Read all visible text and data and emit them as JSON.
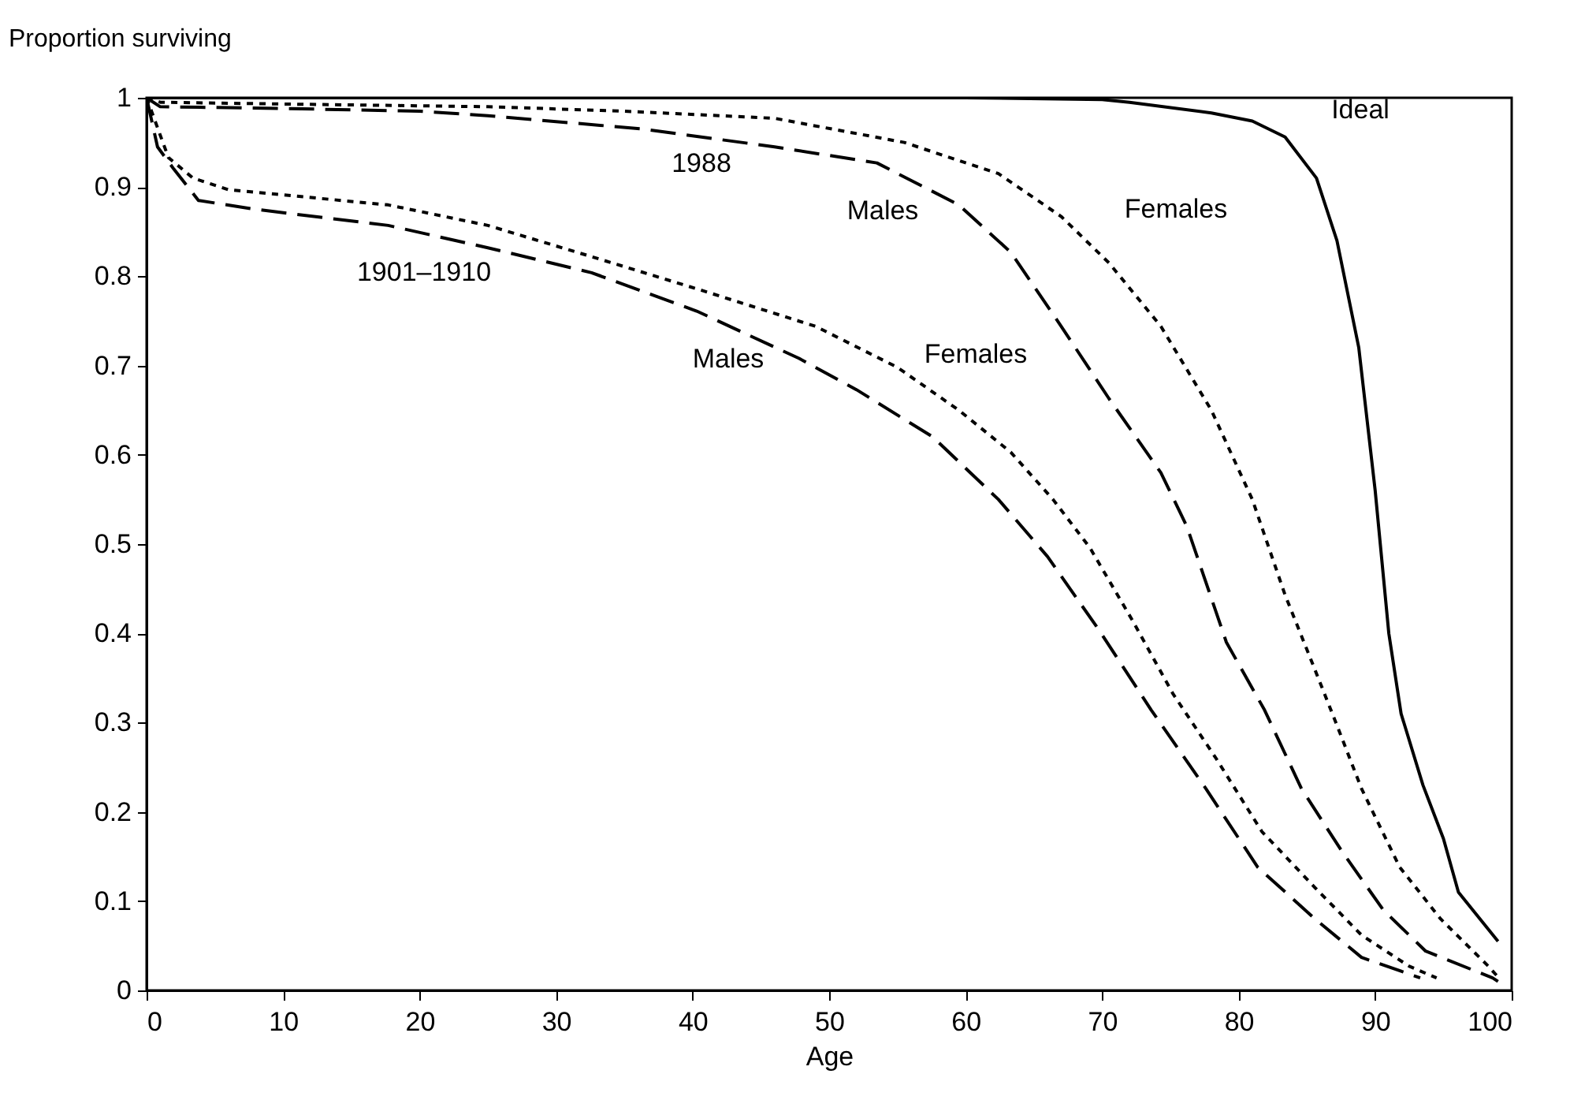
{
  "chart_data": {
    "type": "line",
    "xlabel": "Age",
    "ylabel": "Proportion surviving",
    "xlim": [
      0,
      100
    ],
    "ylim": [
      0,
      1
    ],
    "xticks": [
      0,
      10,
      20,
      30,
      40,
      50,
      60,
      70,
      80,
      90,
      100
    ],
    "yticks": [
      0,
      0.1,
      0.2,
      0.3,
      0.4,
      0.5,
      0.6,
      0.7,
      0.8,
      0.9,
      1
    ],
    "series": [
      {
        "color": "#000000",
        "line_style": "solid",
        "x": [
          0,
          10,
          20,
          30,
          40,
          50,
          60,
          70,
          72,
          78,
          81,
          83.4,
          85.7,
          87.2,
          88.8,
          90,
          91,
          91.9,
          93.5,
          95,
          96.1,
          99
        ],
        "values": [
          1,
          1,
          1,
          1,
          1,
          1,
          1,
          0.998,
          0.995,
          0.983,
          0.974,
          0.956,
          0.91,
          0.84,
          0.72,
          0.56,
          0.4,
          0.31,
          0.23,
          0.17,
          0.11,
          0.055
        ]
      },
      {
        "color": "#000000",
        "line_style": "dotted",
        "x": [
          0,
          1,
          10,
          25,
          35,
          46,
          55.5,
          62.4,
          67,
          70.5,
          74.3,
          78,
          81,
          83.4,
          85.7,
          87.2,
          89,
          91.8,
          94.8,
          98.3,
          99
        ],
        "values": [
          1,
          0.995,
          0.993,
          0.99,
          0.985,
          0.977,
          0.95,
          0.915,
          0.867,
          0.815,
          0.744,
          0.65,
          0.55,
          0.443,
          0.355,
          0.297,
          0.226,
          0.138,
          0.08,
          0.027,
          0.015
        ]
      },
      {
        "color": "#000000",
        "line_style": "dashed",
        "x": [
          0,
          1,
          10,
          20,
          25,
          36.3,
          46,
          53.5,
          59.5,
          63.3,
          67,
          70.5,
          74.3,
          76.2,
          79.1,
          81.9,
          84.6,
          87.6,
          90.6,
          93.7,
          98.6,
          99
        ],
        "values": [
          1,
          0.99,
          0.988,
          0.985,
          0.98,
          0.965,
          0.945,
          0.927,
          0.88,
          0.827,
          0.744,
          0.663,
          0.58,
          0.52,
          0.39,
          0.314,
          0.226,
          0.155,
          0.09,
          0.044,
          0.014,
          0.01
        ]
      },
      {
        "color": "#000000",
        "line_style": "dotted",
        "x": [
          0,
          1.6,
          3.4,
          6,
          17.7,
          25,
          32.6,
          40.3,
          49,
          55,
          59.5,
          63.3,
          66.4,
          69.1,
          72.2,
          75.2,
          78.3,
          81.7,
          85.6,
          89,
          92.5,
          94.5
        ],
        "values": [
          1,
          0.933,
          0.91,
          0.897,
          0.88,
          0.857,
          0.822,
          0.786,
          0.744,
          0.698,
          0.65,
          0.603,
          0.55,
          0.496,
          0.415,
          0.332,
          0.261,
          0.178,
          0.115,
          0.062,
          0.027,
          0.014
        ]
      },
      {
        "color": "#000000",
        "line_style": "dashed",
        "x": [
          0,
          0.8,
          2,
          3.8,
          8,
          17.7,
          25,
          32.6,
          40.3,
          47.8,
          52,
          57.6,
          62.4,
          66,
          69.8,
          73.6,
          77.6,
          81.4,
          85.6,
          89,
          93.3
        ],
        "values": [
          1,
          0.945,
          0.92,
          0.885,
          0.875,
          0.857,
          0.832,
          0.804,
          0.761,
          0.708,
          0.673,
          0.62,
          0.55,
          0.486,
          0.403,
          0.314,
          0.226,
          0.138,
          0.08,
          0.037,
          0.014
        ]
      }
    ],
    "annotations": [
      "Ideal",
      "1988",
      "Males",
      "Females",
      "1901–1910",
      "Males",
      "Females"
    ]
  }
}
